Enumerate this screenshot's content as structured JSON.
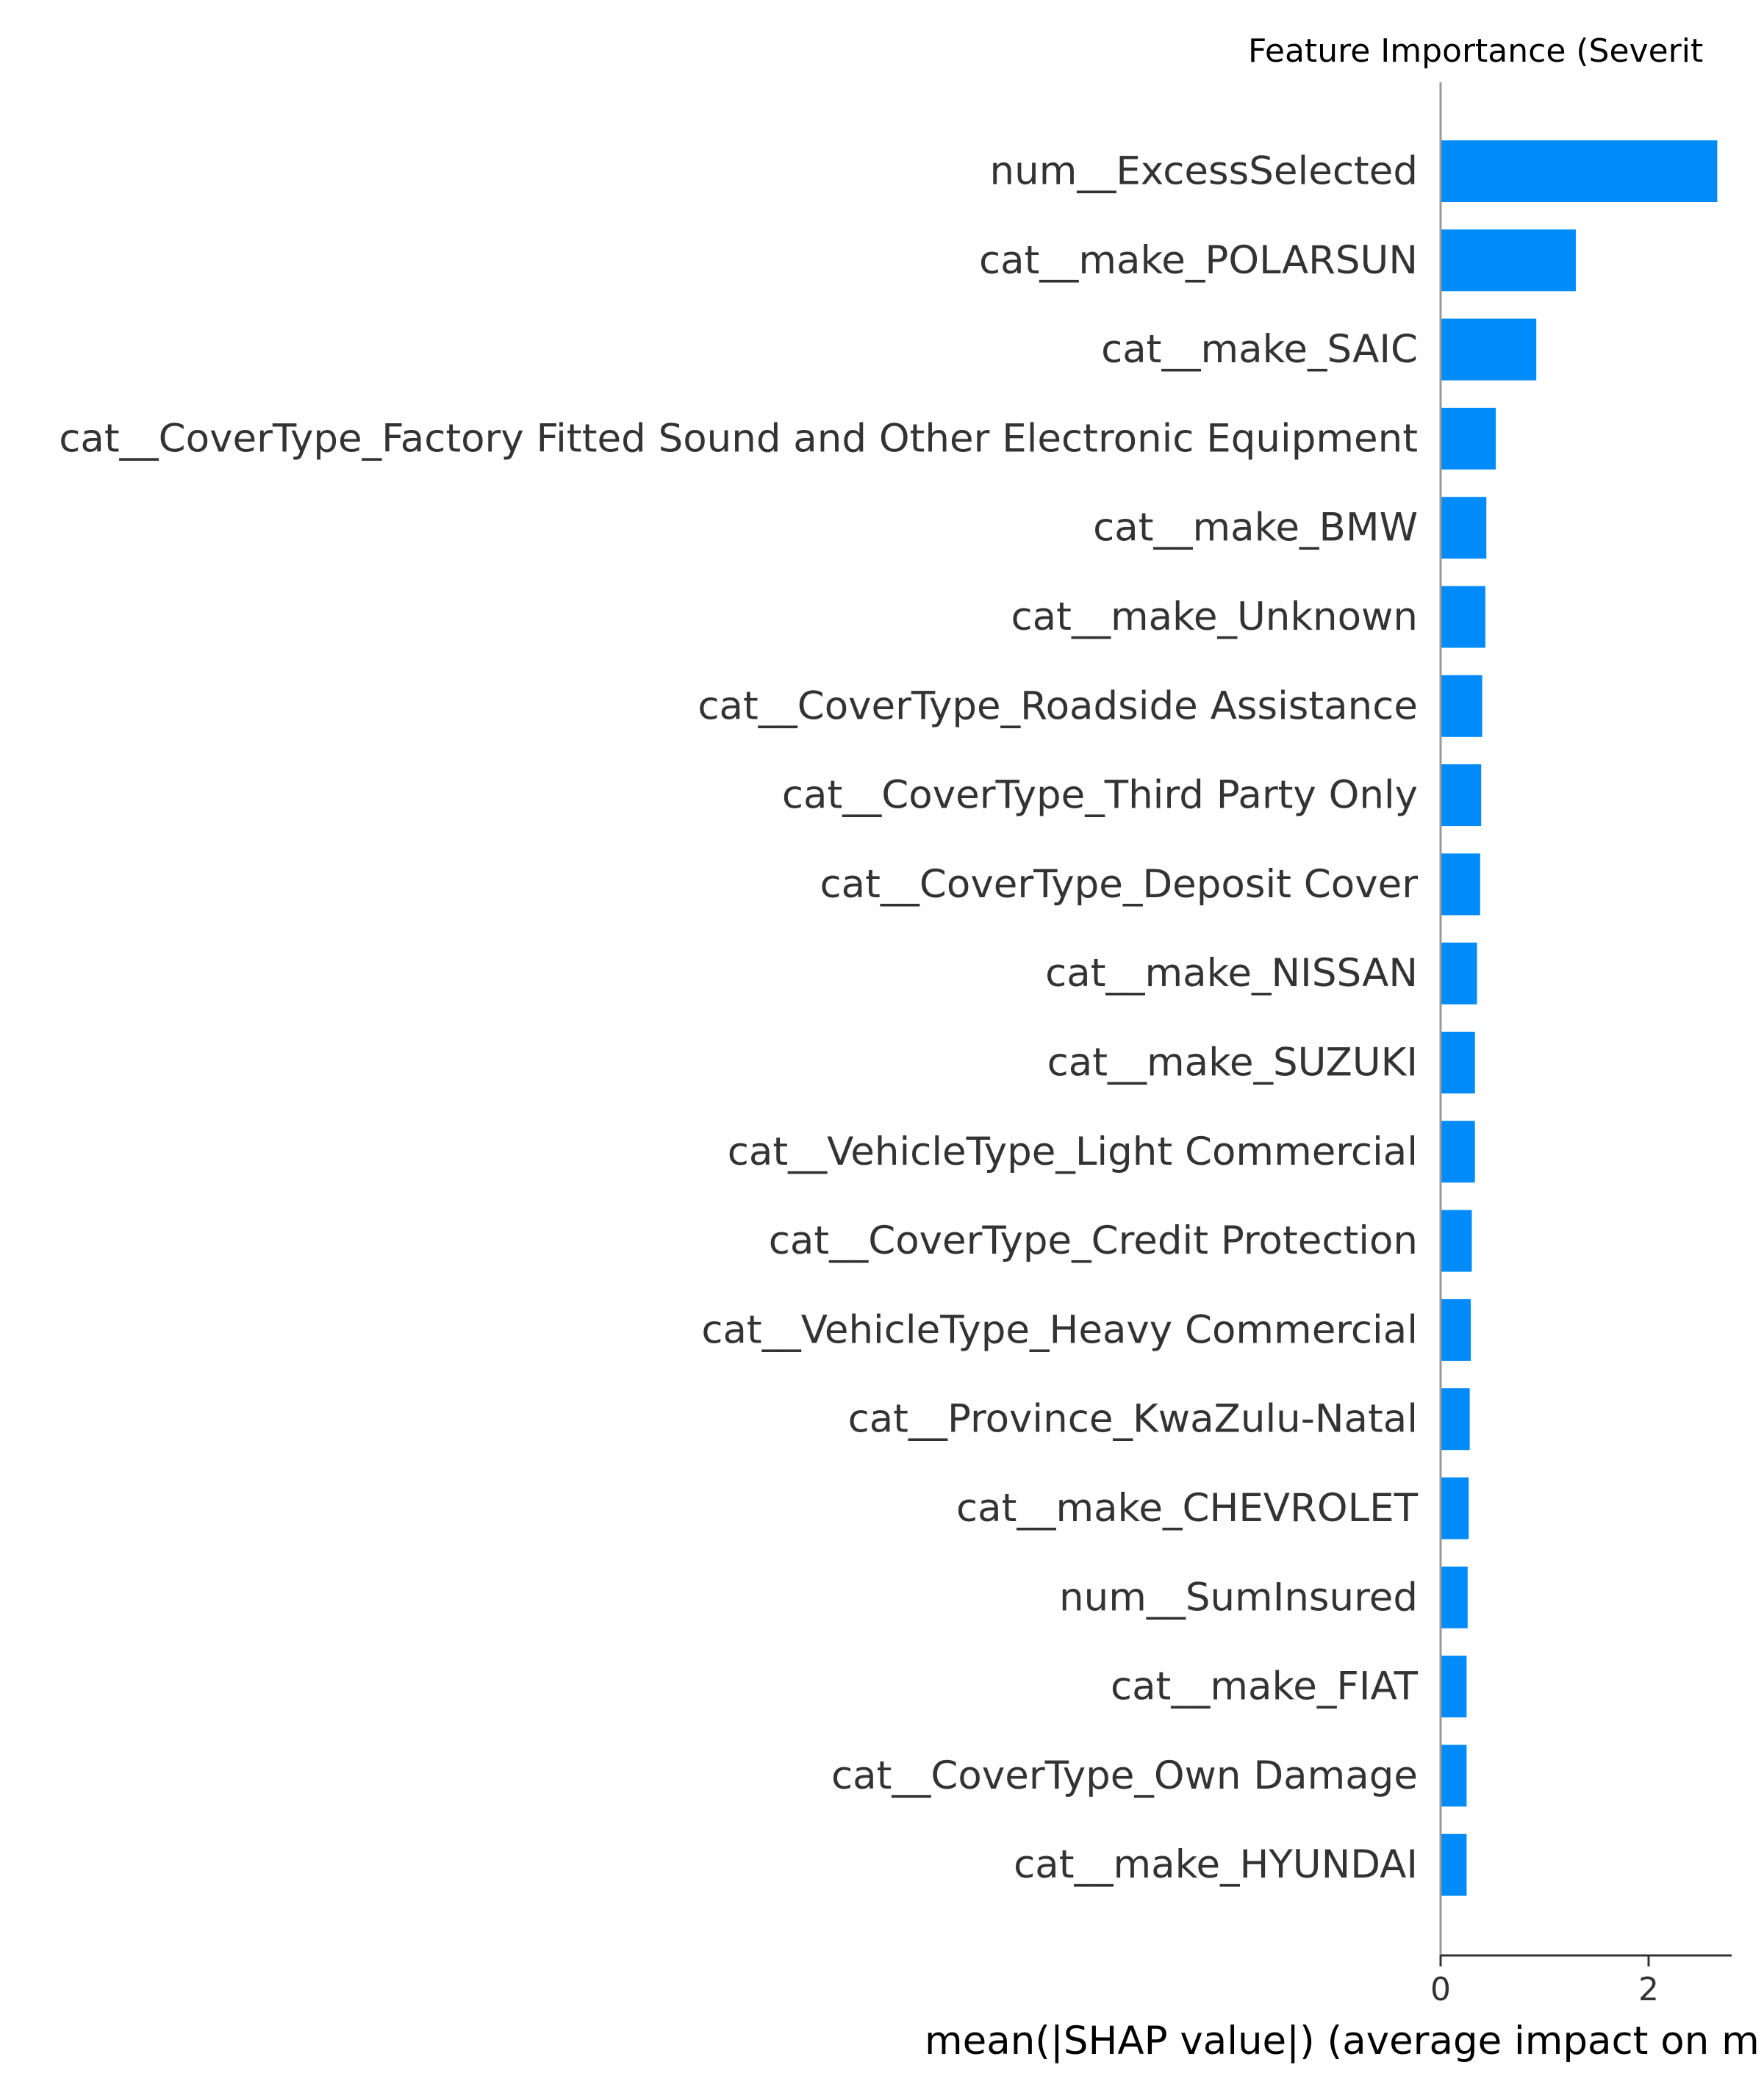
{
  "chart_data": {
    "type": "bar",
    "orientation": "horizontal",
    "title": "Feature Importance (Severit",
    "xlabel": "mean(|SHAP value|) (average impact on m",
    "ylabel": "",
    "xlim": [
      0,
      2.8
    ],
    "xticks": [
      0,
      2
    ],
    "xtick_labels": [
      "0",
      "2"
    ],
    "grid": false,
    "bar_color": "#008bfb",
    "categories": [
      "num__ExcessSelected",
      "cat__make_POLARSUN",
      "cat__make_SAIC",
      "cat__CoverType_Factory Fitted Sound and Other Electronic Equipment",
      "cat__make_BMW",
      "cat__make_Unknown",
      "cat__CoverType_Roadside Assistance",
      "cat__CoverType_Third Party Only",
      "cat__CoverType_Deposit Cover",
      "cat__make_NISSAN",
      "cat__make_SUZUKI",
      "cat__VehicleType_Light Commercial",
      "cat__CoverType_Credit Protection",
      "cat__VehicleType_Heavy Commercial",
      "cat__Province_KwaZulu-Natal",
      "cat__make_CHEVROLET",
      "num__SumInsured",
      "cat__make_FIAT",
      "cat__CoverType_Own Damage",
      "cat__make_HYUNDAI"
    ],
    "values": [
      2.66,
      1.3,
      0.92,
      0.53,
      0.44,
      0.43,
      0.4,
      0.39,
      0.38,
      0.35,
      0.33,
      0.33,
      0.3,
      0.29,
      0.28,
      0.27,
      0.26,
      0.25,
      0.25,
      0.25
    ]
  }
}
